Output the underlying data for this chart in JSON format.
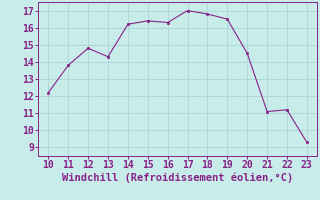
{
  "x": [
    10,
    11,
    12,
    13,
    14,
    15,
    16,
    17,
    18,
    19,
    20,
    21,
    22,
    23
  ],
  "y": [
    12.2,
    13.8,
    14.8,
    14.3,
    16.2,
    16.4,
    16.3,
    17.0,
    16.8,
    16.5,
    14.5,
    11.1,
    11.2,
    9.3
  ],
  "line_color": "#882288",
  "marker_color": "#882288",
  "bg_color": "#c8ecea",
  "grid_color": "#b0d8d8",
  "xlabel": "Windchill (Refroidissement éolien,°C)",
  "xlim": [
    9.5,
    23.5
  ],
  "ylim": [
    8.5,
    17.5
  ],
  "xticks": [
    10,
    11,
    12,
    13,
    14,
    15,
    16,
    17,
    18,
    19,
    20,
    21,
    22,
    23
  ],
  "yticks": [
    9,
    10,
    11,
    12,
    13,
    14,
    15,
    16,
    17
  ],
  "tick_color": "#882288",
  "label_color": "#882288",
  "font_size": 7.0,
  "xlabel_fontsize": 7.5
}
